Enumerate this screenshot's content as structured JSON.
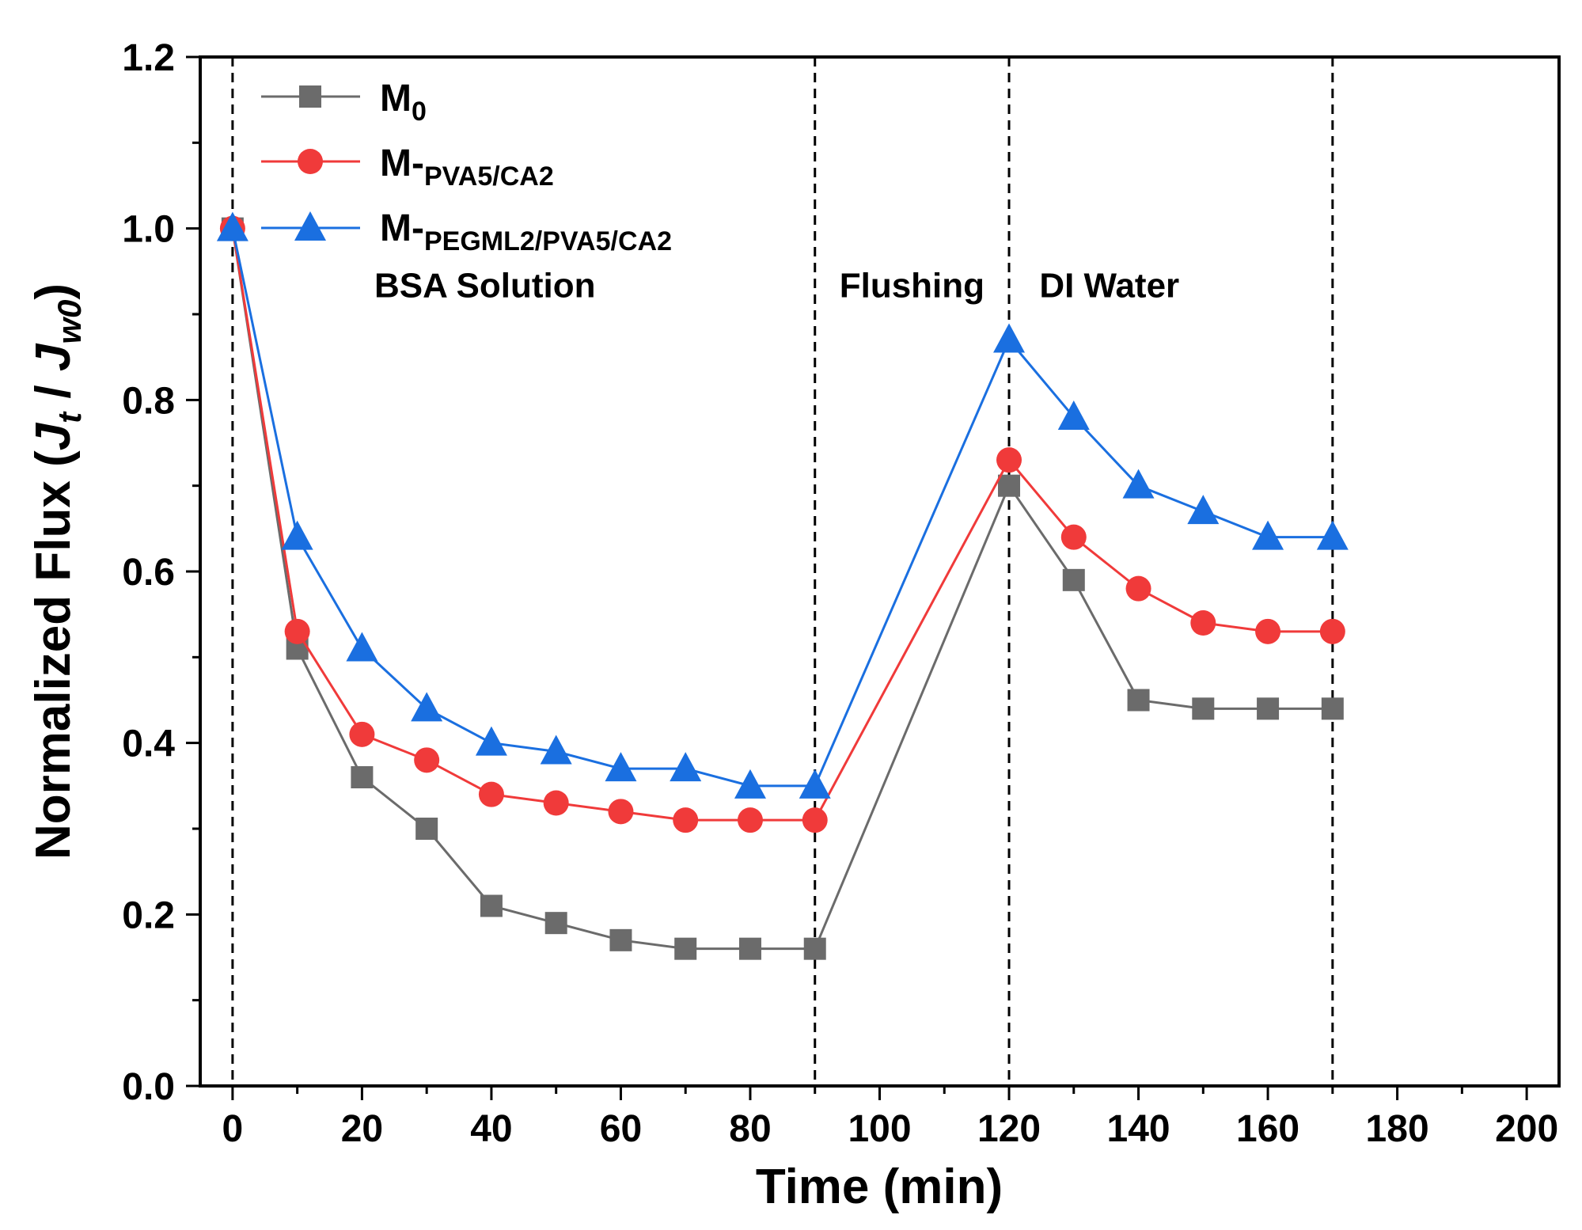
{
  "chart_data": {
    "type": "line",
    "title": "",
    "xlabel": "Time (min)",
    "ylabel": {
      "main": "Normalized Flux (",
      "j1": "J",
      "t": "t",
      "slash": " / ",
      "j2": "J",
      "w0": "w0",
      "close": ")"
    },
    "xlim": [
      -5,
      205
    ],
    "ylim": [
      0.0,
      1.2
    ],
    "xticks": [
      0,
      20,
      40,
      60,
      80,
      100,
      120,
      140,
      160,
      180,
      200
    ],
    "xtick_labels": [
      "0",
      "20",
      "40",
      "60",
      "80",
      "100",
      "120",
      "140",
      "160",
      "180",
      "200"
    ],
    "yticks": [
      0.0,
      0.2,
      0.4,
      0.6,
      0.8,
      1.0,
      1.2
    ],
    "ytick_labels": [
      "0.0",
      "0.2",
      "0.4",
      "0.6",
      "0.8",
      "1.0",
      "1.2"
    ],
    "x": [
      0,
      10,
      20,
      30,
      40,
      50,
      60,
      70,
      80,
      90,
      120,
      130,
      140,
      150,
      160,
      170
    ],
    "series": [
      {
        "name": "M0",
        "label_main": "M",
        "label_sub": "0",
        "color": "#6b6b6b",
        "marker": "square",
        "values": [
          1.0,
          0.51,
          0.36,
          0.3,
          0.21,
          0.19,
          0.17,
          0.16,
          0.16,
          0.16,
          0.7,
          0.59,
          0.45,
          0.44,
          0.44,
          0.44
        ]
      },
      {
        "name": "M-PVA5/CA2",
        "label_main": "M-",
        "label_sub": "PVA5/CA2",
        "color": "#f03a3a",
        "marker": "circle",
        "values": [
          1.0,
          0.53,
          0.41,
          0.38,
          0.34,
          0.33,
          0.32,
          0.31,
          0.31,
          0.31,
          0.73,
          0.64,
          0.58,
          0.54,
          0.53,
          0.53
        ]
      },
      {
        "name": "M-PEGML2/PVA5/CA2",
        "label_main": "M-",
        "label_sub": "PEGML2/PVA5/CA2",
        "color": "#1a6fe0",
        "marker": "triangle",
        "values": [
          1.0,
          0.64,
          0.51,
          0.44,
          0.4,
          0.39,
          0.37,
          0.37,
          0.35,
          0.35,
          0.87,
          0.78,
          0.7,
          0.67,
          0.64,
          0.64
        ]
      }
    ],
    "vlines": [
      0,
      90,
      120,
      170
    ],
    "annotations": [
      {
        "text": "BSA Solution",
        "x": 39,
        "y": 0.92
      },
      {
        "text": "Flushing",
        "x": 105,
        "y": 0.92
      },
      {
        "text": "DI Water",
        "x": 135.5,
        "y": 0.92
      }
    ],
    "legend_position": "top-left",
    "grid": false
  }
}
